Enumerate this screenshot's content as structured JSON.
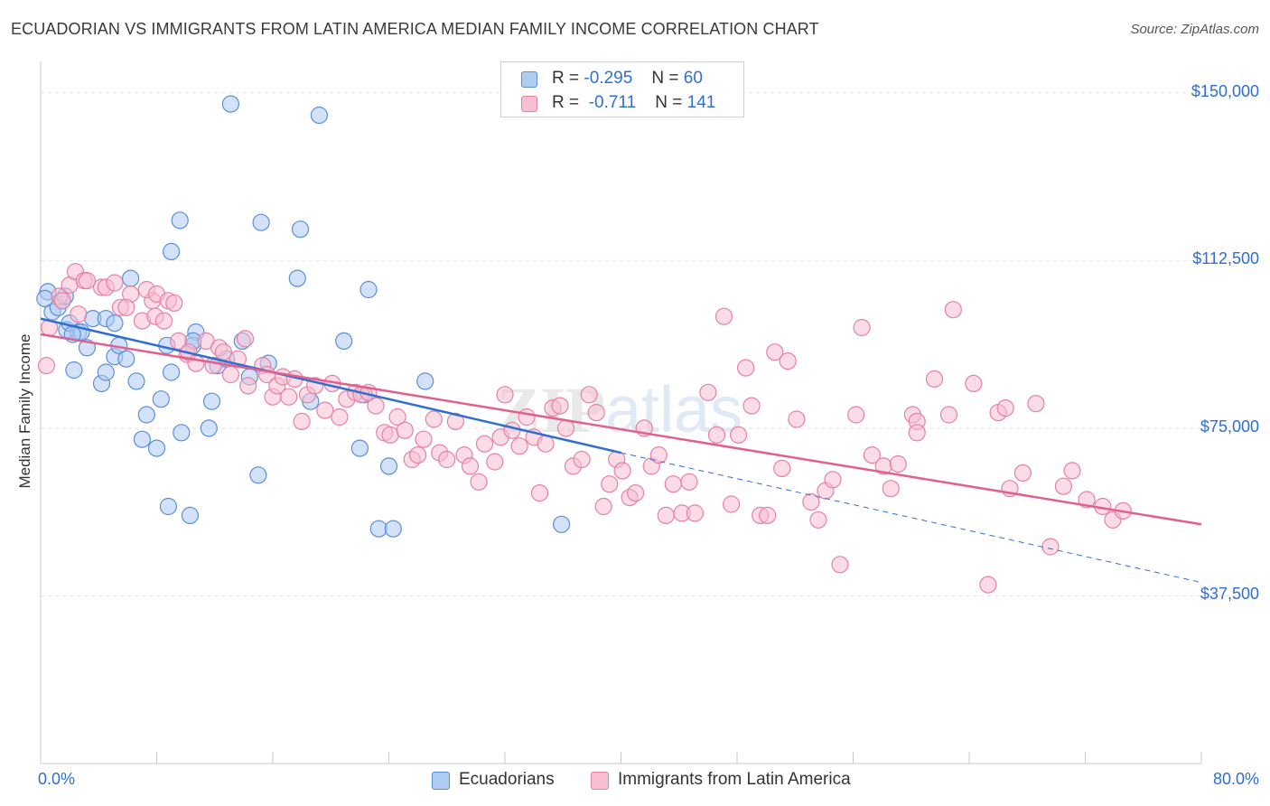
{
  "header": {
    "title": "ECUADORIAN VS IMMIGRANTS FROM LATIN AMERICA MEDIAN FAMILY INCOME CORRELATION CHART",
    "source": "Source: ZipAtlas.com"
  },
  "legend_top": {
    "rows": [
      {
        "r_label": "R =",
        "r_value": "-0.295",
        "n_label": "N =",
        "n_value": "60"
      },
      {
        "r_label": "R =",
        "r_value": "-0.711",
        "n_label": "N =",
        "n_value": "141"
      }
    ]
  },
  "legend_bottom": {
    "items": [
      "Ecuadorians",
      "Immigrants from Latin America"
    ]
  },
  "colors": {
    "blue_fill": "#aecbf2",
    "blue_stroke": "#5b8fd6",
    "blue_line": "#2e6fd1",
    "pink_fill": "#f7bfd1",
    "pink_stroke": "#e581a5",
    "pink_line": "#e0608f",
    "tick_text": "#2e6fd1",
    "grid": "#e3e3e3"
  },
  "chart_data": {
    "type": "scatter",
    "title": "ECUADORIAN VS IMMIGRANTS FROM LATIN AMERICA MEDIAN FAMILY INCOME CORRELATION CHART",
    "xlabel": "",
    "ylabel": "Median Family Income",
    "xlim": [
      0,
      80
    ],
    "ylim": [
      0,
      155000
    ],
    "x_tick_labels": [
      "0.0%",
      "80.0%"
    ],
    "y_ticks": [
      37500,
      75000,
      112500,
      150000
    ],
    "y_tick_labels": [
      "$37,500",
      "$75,000",
      "$112,500",
      "$150,000"
    ],
    "grid": true,
    "legend_position": "bottom",
    "series": [
      {
        "name": "Ecuadorians",
        "color": "#aecbf2",
        "points": [
          [
            0.5,
            105500
          ],
          [
            0.8,
            101000
          ],
          [
            1.2,
            102000
          ],
          [
            1.5,
            103500
          ],
          [
            1.7,
            104500
          ],
          [
            1.8,
            97000
          ],
          [
            2.0,
            98500
          ],
          [
            2.3,
            88000
          ],
          [
            2.6,
            96500
          ],
          [
            2.8,
            96500
          ],
          [
            3.2,
            93000
          ],
          [
            4.2,
            85000
          ],
          [
            4.5,
            87500
          ],
          [
            3.6,
            99500
          ],
          [
            4.5,
            99500
          ],
          [
            5.1,
            98500
          ],
          [
            5.1,
            91000
          ],
          [
            5.4,
            93500
          ],
          [
            5.9,
            90500
          ],
          [
            6.2,
            108500
          ],
          [
            6.6,
            85500
          ],
          [
            7.0,
            72500
          ],
          [
            7.3,
            78000
          ],
          [
            8.0,
            70500
          ],
          [
            8.3,
            81500
          ],
          [
            8.7,
            93500
          ],
          [
            9.0,
            87500
          ],
          [
            9.0,
            114500
          ],
          [
            9.7,
            74000
          ],
          [
            9.6,
            121500
          ],
          [
            8.8,
            57500
          ],
          [
            10.3,
            55500
          ],
          [
            10.7,
            96500
          ],
          [
            10.5,
            93500
          ],
          [
            11.6,
            75000
          ],
          [
            11.8,
            81000
          ],
          [
            12.2,
            89000
          ],
          [
            12.8,
            90500
          ],
          [
            13.1,
            147500
          ],
          [
            13.9,
            94500
          ],
          [
            14.4,
            86500
          ],
          [
            15.2,
            121000
          ],
          [
            15.0,
            64500
          ],
          [
            15.7,
            89500
          ],
          [
            17.7,
            108500
          ],
          [
            17.9,
            119500
          ],
          [
            18.6,
            81000
          ],
          [
            19.2,
            145000
          ],
          [
            20.9,
            94500
          ],
          [
            22.3,
            82500
          ],
          [
            22.0,
            70500
          ],
          [
            22.6,
            106000
          ],
          [
            23.3,
            52500
          ],
          [
            24.3,
            52500
          ],
          [
            24.0,
            66500
          ],
          [
            26.5,
            85500
          ],
          [
            35.9,
            53500
          ],
          [
            0.3,
            104000
          ],
          [
            10.5,
            94500
          ],
          [
            2.2,
            96000
          ]
        ]
      },
      {
        "name": "Immigrants from Latin America",
        "color": "#f7bfd1",
        "points": [
          [
            0.4,
            89000
          ],
          [
            0.6,
            97500
          ],
          [
            1.3,
            104500
          ],
          [
            1.5,
            103500
          ],
          [
            2.0,
            107000
          ],
          [
            2.4,
            110000
          ],
          [
            2.6,
            100500
          ],
          [
            3.0,
            108000
          ],
          [
            3.2,
            108000
          ],
          [
            4.2,
            106500
          ],
          [
            4.5,
            106500
          ],
          [
            5.1,
            107500
          ],
          [
            5.5,
            102000
          ],
          [
            6.2,
            105000
          ],
          [
            5.9,
            102000
          ],
          [
            7.0,
            99000
          ],
          [
            7.7,
            103500
          ],
          [
            7.3,
            106000
          ],
          [
            7.9,
            100000
          ],
          [
            8.0,
            105000
          ],
          [
            8.5,
            99000
          ],
          [
            8.8,
            103500
          ],
          [
            9.2,
            103000
          ],
          [
            9.5,
            94500
          ],
          [
            10.1,
            91500
          ],
          [
            10.2,
            92000
          ],
          [
            10.7,
            89500
          ],
          [
            11.4,
            94500
          ],
          [
            11.9,
            89000
          ],
          [
            12.3,
            93000
          ],
          [
            12.6,
            92000
          ],
          [
            13.1,
            87000
          ],
          [
            13.6,
            90500
          ],
          [
            14.1,
            95000
          ],
          [
            14.3,
            84500
          ],
          [
            15.3,
            89000
          ],
          [
            15.6,
            87000
          ],
          [
            16.0,
            82000
          ],
          [
            16.3,
            84500
          ],
          [
            16.7,
            86500
          ],
          [
            17.1,
            82000
          ],
          [
            17.5,
            86000
          ],
          [
            18.0,
            76500
          ],
          [
            18.4,
            82500
          ],
          [
            18.9,
            84500
          ],
          [
            19.6,
            79000
          ],
          [
            20.1,
            85000
          ],
          [
            20.6,
            77500
          ],
          [
            21.1,
            81500
          ],
          [
            21.7,
            83000
          ],
          [
            22.1,
            82500
          ],
          [
            22.6,
            83000
          ],
          [
            23.1,
            80000
          ],
          [
            23.7,
            74000
          ],
          [
            24.1,
            73500
          ],
          [
            24.6,
            77500
          ],
          [
            25.1,
            74500
          ],
          [
            25.6,
            68000
          ],
          [
            26.0,
            69000
          ],
          [
            26.4,
            72500
          ],
          [
            27.1,
            77000
          ],
          [
            27.5,
            69500
          ],
          [
            28.0,
            68000
          ],
          [
            28.6,
            76500
          ],
          [
            29.2,
            69000
          ],
          [
            29.6,
            66500
          ],
          [
            30.2,
            63000
          ],
          [
            30.6,
            71500
          ],
          [
            31.3,
            67500
          ],
          [
            31.7,
            73000
          ],
          [
            32.0,
            82500
          ],
          [
            32.5,
            74500
          ],
          [
            33.0,
            71000
          ],
          [
            33.5,
            77500
          ],
          [
            34.0,
            73000
          ],
          [
            34.4,
            60500
          ],
          [
            34.8,
            71500
          ],
          [
            35.3,
            79500
          ],
          [
            35.8,
            80000
          ],
          [
            36.2,
            75000
          ],
          [
            36.7,
            66500
          ],
          [
            37.3,
            68000
          ],
          [
            37.8,
            82500
          ],
          [
            38.3,
            78500
          ],
          [
            38.8,
            57500
          ],
          [
            39.2,
            62500
          ],
          [
            39.7,
            68000
          ],
          [
            40.1,
            65500
          ],
          [
            40.6,
            59500
          ],
          [
            41.0,
            60500
          ],
          [
            41.6,
            75000
          ],
          [
            42.1,
            66500
          ],
          [
            42.6,
            69000
          ],
          [
            43.1,
            55500
          ],
          [
            43.6,
            62500
          ],
          [
            44.2,
            56000
          ],
          [
            44.7,
            63000
          ],
          [
            45.1,
            56000
          ],
          [
            46.0,
            83000
          ],
          [
            46.6,
            73500
          ],
          [
            47.1,
            100000
          ],
          [
            47.6,
            58000
          ],
          [
            48.1,
            73500
          ],
          [
            48.6,
            88500
          ],
          [
            49.0,
            80000
          ],
          [
            49.6,
            55500
          ],
          [
            50.1,
            55500
          ],
          [
            50.6,
            92000
          ],
          [
            51.1,
            66000
          ],
          [
            51.5,
            90000
          ],
          [
            52.1,
            77000
          ],
          [
            53.1,
            58500
          ],
          [
            53.6,
            54500
          ],
          [
            54.1,
            61000
          ],
          [
            54.6,
            63500
          ],
          [
            55.1,
            44500
          ],
          [
            56.2,
            78000
          ],
          [
            56.6,
            97500
          ],
          [
            57.3,
            69000
          ],
          [
            58.1,
            66500
          ],
          [
            58.6,
            61500
          ],
          [
            59.1,
            67000
          ],
          [
            60.1,
            78000
          ],
          [
            60.4,
            76500
          ],
          [
            60.4,
            74000
          ],
          [
            61.6,
            86000
          ],
          [
            62.6,
            78000
          ],
          [
            62.9,
            101500
          ],
          [
            64.3,
            85000
          ],
          [
            65.3,
            40000
          ],
          [
            66.0,
            78500
          ],
          [
            66.5,
            79500
          ],
          [
            66.8,
            61500
          ],
          [
            67.7,
            65000
          ],
          [
            68.6,
            80500
          ],
          [
            69.6,
            48500
          ],
          [
            70.5,
            62000
          ],
          [
            71.1,
            65500
          ],
          [
            72.1,
            59000
          ],
          [
            73.2,
            57500
          ],
          [
            73.9,
            54500
          ],
          [
            74.6,
            56500
          ]
        ]
      }
    ],
    "trendlines": [
      {
        "series": "Ecuadorians",
        "x": [
          0,
          40
        ],
        "y": [
          99500,
          69500
        ],
        "style": "solid"
      },
      {
        "series": "Ecuadorians",
        "x": [
          40,
          80
        ],
        "y": [
          69500,
          40500
        ],
        "style": "dashed"
      },
      {
        "series": "Immigrants from Latin America",
        "x": [
          0,
          80
        ],
        "y": [
          96000,
          53500
        ],
        "style": "solid"
      }
    ],
    "watermark": "ZIPatlas"
  }
}
